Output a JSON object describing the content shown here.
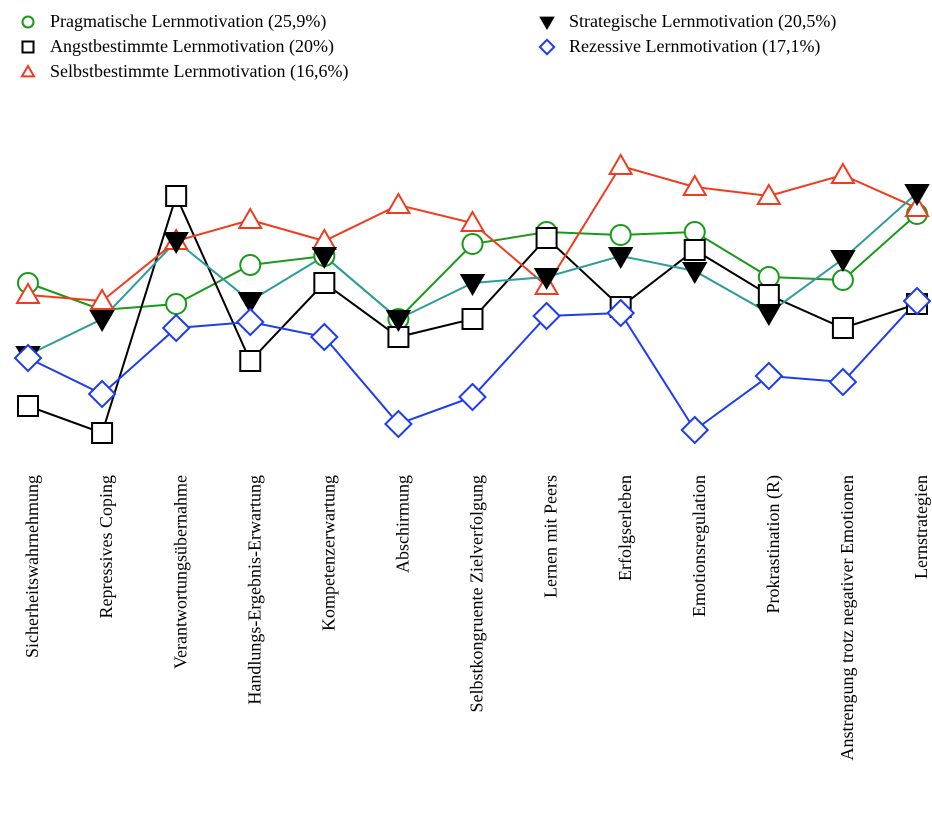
{
  "chart_data": {
    "type": "line",
    "categories": [
      "Sicherheitswahrnehmung",
      "Repressives Coping",
      "Verantwortungsübernahme",
      "Handlungs-Ergebnis-Erwartung",
      "Kompetenzerwartung",
      "Abschirmung",
      "Selbstkongruente Zielverfolgung",
      "Lernen mit Peers",
      "Erfolgserleben",
      "Emotionsregulation",
      "Prokrastination (R)",
      "Anstrengung trotz negativer Emotionen",
      "Lernstrategien"
    ],
    "ylim": [
      0,
      100
    ],
    "series": [
      {
        "name": "Pragmatische Lernmotivation (25,9%)",
        "color": "#1a9a1a",
        "marker": "circle",
        "values": [
          59,
          50,
          52,
          65,
          68,
          47,
          72,
          76,
          75,
          76,
          61,
          60,
          82
        ]
      },
      {
        "name": "Angstbestimmte Lernmotivation (20%)",
        "color": "#000000",
        "marker": "square",
        "values": [
          18,
          9,
          88,
          33,
          59,
          41,
          47,
          74,
          51,
          70,
          55,
          44,
          52
        ]
      },
      {
        "name": "Selbstbestimmte Lernmotivation (16,6%)",
        "color": "#f03c1e",
        "marker": "triangle-up",
        "values": [
          55,
          53,
          73,
          80,
          73,
          85,
          79,
          58,
          98,
          91,
          88,
          95,
          84
        ]
      },
      {
        "name": "Strategische Lernmotivation (20,5%)",
        "color": "#2e9c9c",
        "marker_color": "#000000",
        "marker": "triangle-down",
        "values": [
          35,
          47,
          73,
          53,
          68,
          47,
          59,
          61,
          68,
          63,
          49,
          67,
          89
        ]
      },
      {
        "name": "Rezessive Lernmotivation (17,1%)",
        "color": "#1e3cf0",
        "marker": "diamond",
        "values": [
          34,
          22,
          44,
          46,
          41,
          12,
          21,
          48,
          49,
          10,
          28,
          26,
          53
        ]
      }
    ]
  }
}
